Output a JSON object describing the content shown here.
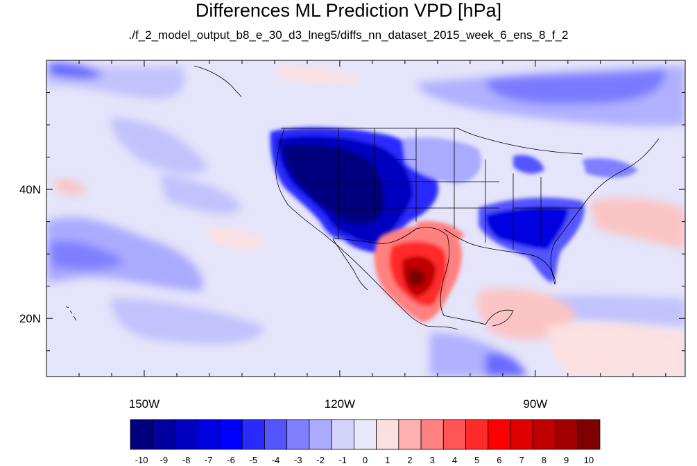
{
  "title": "Differences ML Prediction VPD [hPa]",
  "subtitle": "./f_2_model_output_b8_e_30_d3_lneg5/diffs_nn_dataset_2015_week_6_ens_8_f_2",
  "map": {
    "lon_range": [
      -165,
      -67
    ],
    "lat_range": [
      11,
      60
    ],
    "lon_ticks": [
      {
        "value": -150,
        "label": "150W"
      },
      {
        "value": -120,
        "label": "120W"
      },
      {
        "value": -90,
        "label": "90W"
      }
    ],
    "lat_ticks": [
      {
        "value": 40,
        "label": "40N"
      },
      {
        "value": 20,
        "label": "20N"
      }
    ],
    "background_color": "#e4e4fa"
  },
  "colorbar": {
    "labels": [
      "-10",
      "-9",
      "-8",
      "-7",
      "-6",
      "-5",
      "-4",
      "-3",
      "-2",
      "-1",
      "0",
      "1",
      "2",
      "3",
      "4",
      "5",
      "6",
      "7",
      "8",
      "9",
      "10"
    ],
    "colors": [
      "#00007f",
      "#0000a0",
      "#0000c0",
      "#0000e0",
      "#0000ff",
      "#2a2aff",
      "#5555ff",
      "#8080ff",
      "#aaaaff",
      "#d4d4fb",
      "#e8e8fa",
      "#fbdede",
      "#ffb0b0",
      "#ff8080",
      "#ff5555",
      "#ff2a2a",
      "#ff0000",
      "#e00000",
      "#c00000",
      "#a00000",
      "#7f0000"
    ]
  }
}
